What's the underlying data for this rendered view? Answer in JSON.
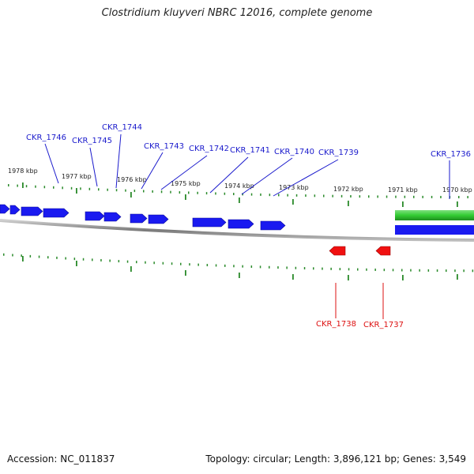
{
  "title": "Clostridium kluyveri NBRC 12016, complete genome",
  "footer": {
    "accession": "Accession: NC_011837",
    "summary": "Topology: circular; Length: 3,896,121 bp; Genes: 3,549"
  },
  "colors": {
    "forward_gene": "#1a1af0",
    "reverse_gene": "#f01010",
    "forward_label": "#1a1acc",
    "reverse_label": "#dd1010",
    "tick": "#2a8a2a",
    "backbone": "#8a8a8a",
    "green_feature": "#33cc33",
    "blue_feature": "#1a1af0"
  },
  "ticks": [
    {
      "label": "1978 kbp"
    },
    {
      "label": "1977 kbp"
    },
    {
      "label": "1976 kbp"
    },
    {
      "label": "1975 kbp"
    },
    {
      "label": "1974 kbp"
    },
    {
      "label": "1973 kbp"
    },
    {
      "label": "1972 kbp"
    },
    {
      "label": "1971 kbp"
    },
    {
      "label": "1970 kbp"
    }
  ],
  "genes_forward": [
    {
      "name": "CKR_1746"
    },
    {
      "name": "CKR_1745"
    },
    {
      "name": "CKR_1744"
    },
    {
      "name": "CKR_1743"
    },
    {
      "name": "CKR_1742"
    },
    {
      "name": "CKR_1741"
    },
    {
      "name": "CKR_1740"
    },
    {
      "name": "CKR_1739"
    },
    {
      "name": "CKR_1736"
    }
  ],
  "genes_reverse": [
    {
      "name": "CKR_1738"
    },
    {
      "name": "CKR_1737"
    }
  ]
}
